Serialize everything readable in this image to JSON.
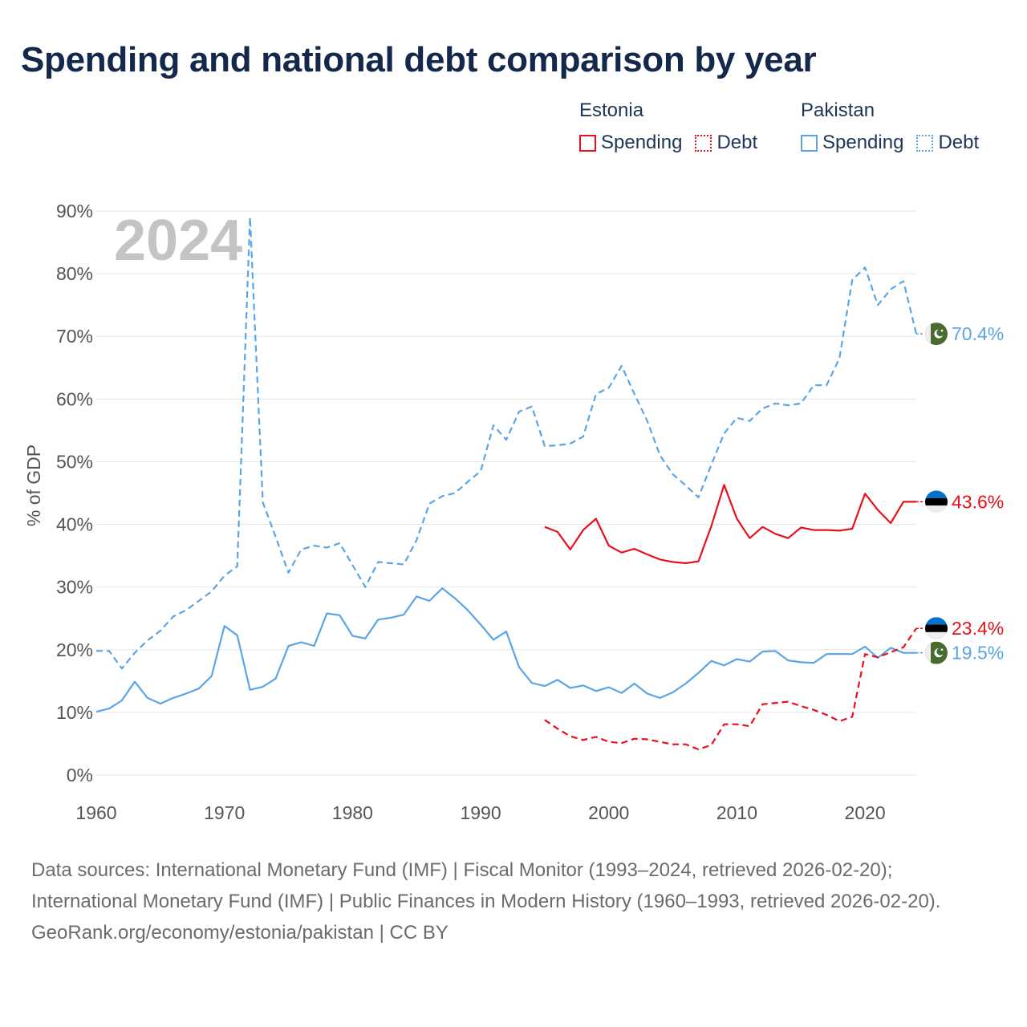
{
  "title": "Spending and national debt comparison by year",
  "legend": {
    "groups": [
      {
        "name": "Estonia",
        "color": "#e8101a",
        "items": [
          {
            "label": "Spending",
            "style": "solid"
          },
          {
            "label": "Debt",
            "style": "dotted"
          }
        ]
      },
      {
        "name": "Pakistan",
        "color": "#5aa5e6",
        "items": [
          {
            "label": "Spending",
            "style": "solid"
          },
          {
            "label": "Debt",
            "style": "dotted"
          }
        ]
      }
    ]
  },
  "year_watermark": "2024",
  "chart_data": {
    "type": "line",
    "title": "Spending and national debt comparison by year",
    "xlabel": "",
    "ylabel": "% of GDP",
    "xlim": [
      1960,
      2024
    ],
    "ylim": [
      0,
      90
    ],
    "x_ticks": [
      1960,
      1970,
      1980,
      1990,
      2000,
      2010,
      2020
    ],
    "x_tick_labels": [
      "1960",
      "1970",
      "1980",
      "1990",
      "2000",
      "2010",
      "2020"
    ],
    "y_ticks": [
      0,
      10,
      20,
      30,
      40,
      50,
      60,
      70,
      80,
      90
    ],
    "y_tick_labels": [
      "0%",
      "10%",
      "20%",
      "30%",
      "40%",
      "50%",
      "60%",
      "70%",
      "80%",
      "90%"
    ],
    "grid": true,
    "series": [
      {
        "name": "Pakistan Debt",
        "country": "Pakistan",
        "metric": "Debt",
        "color": "#5aa5e6",
        "dash": "dashed",
        "end_label": "70.4%",
        "end_value": 70.4,
        "x": [
          1960,
          1961,
          1962,
          1963,
          1964,
          1965,
          1966,
          1967,
          1968,
          1969,
          1970,
          1971,
          1972,
          1973,
          1974,
          1975,
          1976,
          1977,
          1978,
          1979,
          1980,
          1981,
          1982,
          1983,
          1984,
          1985,
          1986,
          1987,
          1988,
          1989,
          1990,
          1991,
          1992,
          1993,
          1994,
          1995,
          1996,
          1997,
          1998,
          1999,
          2000,
          2001,
          2002,
          2003,
          2004,
          2005,
          2006,
          2007,
          2008,
          2009,
          2010,
          2011,
          2012,
          2013,
          2014,
          2015,
          2016,
          2017,
          2018,
          2019,
          2020,
          2021,
          2022,
          2023,
          2024
        ],
        "values": [
          19.8,
          19.8,
          17.0,
          19.5,
          21.5,
          23.0,
          25.3,
          26.3,
          27.8,
          29.3,
          31.8,
          33.3,
          89.0,
          43.5,
          38.0,
          32.3,
          36.0,
          36.6,
          36.3,
          37.0,
          33.5,
          30.0,
          34.0,
          33.8,
          33.6,
          37.5,
          43.3,
          44.5,
          45.0,
          46.8,
          48.5,
          55.8,
          53.5,
          58.0,
          58.8,
          52.5,
          52.6,
          52.9,
          54.0,
          60.8,
          61.8,
          65.3,
          60.8,
          56.5,
          51.0,
          48.0,
          46.2,
          44.3,
          49.5,
          54.5,
          57.0,
          56.5,
          58.5,
          59.3,
          59.0,
          59.3,
          62.2,
          62.2,
          66.5,
          79.0,
          81.0,
          75.0,
          77.5,
          78.8,
          70.4
        ]
      },
      {
        "name": "Pakistan Spending",
        "country": "Pakistan",
        "metric": "Spending",
        "color": "#5aa5e6",
        "dash": "solid",
        "end_label": "19.5%",
        "end_value": 19.5,
        "x": [
          1960,
          1961,
          1962,
          1963,
          1964,
          1965,
          1966,
          1967,
          1968,
          1969,
          1970,
          1971,
          1972,
          1973,
          1974,
          1975,
          1976,
          1977,
          1978,
          1979,
          1980,
          1981,
          1982,
          1983,
          1984,
          1985,
          1986,
          1987,
          1988,
          1989,
          1990,
          1991,
          1992,
          1993,
          1994,
          1995,
          1996,
          1997,
          1998,
          1999,
          2000,
          2001,
          2002,
          2003,
          2004,
          2005,
          2006,
          2007,
          2008,
          2009,
          2010,
          2011,
          2012,
          2013,
          2014,
          2015,
          2016,
          2017,
          2018,
          2019,
          2020,
          2021,
          2022,
          2023,
          2024
        ],
        "values": [
          10.1,
          10.6,
          11.9,
          14.9,
          12.3,
          11.4,
          12.3,
          13.0,
          13.8,
          15.8,
          23.8,
          22.3,
          13.6,
          14.1,
          15.4,
          20.6,
          21.2,
          20.6,
          25.8,
          25.5,
          22.2,
          21.8,
          24.8,
          25.1,
          25.6,
          28.5,
          27.8,
          29.8,
          28.2,
          26.3,
          24.0,
          21.6,
          22.9,
          17.2,
          14.7,
          14.2,
          15.2,
          13.9,
          14.3,
          13.4,
          14.0,
          13.1,
          14.6,
          13.0,
          12.3,
          13.2,
          14.6,
          16.3,
          18.2,
          17.5,
          18.5,
          18.1,
          19.7,
          19.8,
          18.3,
          18.0,
          17.9,
          19.3,
          19.3,
          19.3,
          20.5,
          18.7,
          20.3,
          19.5,
          19.5
        ]
      },
      {
        "name": "Estonia Spending",
        "country": "Estonia",
        "metric": "Spending",
        "color": "#e8101a",
        "dash": "solid",
        "end_label": "43.6%",
        "end_value": 43.6,
        "x": [
          1995,
          1996,
          1997,
          1998,
          1999,
          2000,
          2001,
          2002,
          2003,
          2004,
          2005,
          2006,
          2007,
          2008,
          2009,
          2010,
          2011,
          2012,
          2013,
          2014,
          2015,
          2016,
          2017,
          2018,
          2019,
          2020,
          2021,
          2022,
          2023,
          2024
        ],
        "values": [
          39.6,
          38.8,
          36.0,
          39.1,
          40.9,
          36.6,
          35.5,
          36.1,
          35.2,
          34.4,
          34.0,
          33.8,
          34.1,
          39.7,
          46.3,
          40.9,
          37.8,
          39.6,
          38.5,
          37.8,
          39.5,
          39.1,
          39.1,
          39.0,
          39.3,
          44.9,
          42.3,
          40.2,
          43.6,
          43.6
        ]
      },
      {
        "name": "Estonia Debt",
        "country": "Estonia",
        "metric": "Debt",
        "color": "#e8101a",
        "dash": "dashed",
        "end_label": "23.4%",
        "end_value": 23.4,
        "x": [
          1995,
          1996,
          1997,
          1998,
          1999,
          2000,
          2001,
          2002,
          2003,
          2004,
          2005,
          2006,
          2007,
          2008,
          2009,
          2010,
          2011,
          2012,
          2013,
          2014,
          2015,
          2016,
          2017,
          2018,
          2019,
          2020,
          2021,
          2022,
          2023,
          2024
        ],
        "values": [
          8.8,
          7.4,
          6.2,
          5.6,
          6.1,
          5.3,
          5.1,
          5.8,
          5.7,
          5.3,
          4.9,
          4.9,
          4.1,
          4.8,
          8.1,
          8.1,
          7.8,
          11.3,
          11.5,
          11.7,
          11.0,
          10.4,
          9.6,
          8.6,
          9.3,
          19.3,
          18.8,
          19.6,
          20.4,
          23.4
        ]
      }
    ]
  },
  "end_markers": [
    {
      "flag": "pakistan-flag",
      "value_text": "70.4%"
    },
    {
      "flag": "estonia-flag",
      "value_text": "43.6%"
    },
    {
      "flag": "estonia-flag",
      "value_text": "23.4%"
    },
    {
      "flag": "pakistan-flag",
      "value_text": "19.5%"
    }
  ],
  "footer": {
    "sources": "Data sources: International Monetary Fund (IMF) | Fiscal Monitor (1993–2024, retrieved 2026-02-20); International Monetary Fund (IMF) | Public Finances in Modern History (1960–1993, retrieved 2026-02-20).",
    "credit": "GeoRank.org/economy/estonia/pakistan | CC BY"
  }
}
